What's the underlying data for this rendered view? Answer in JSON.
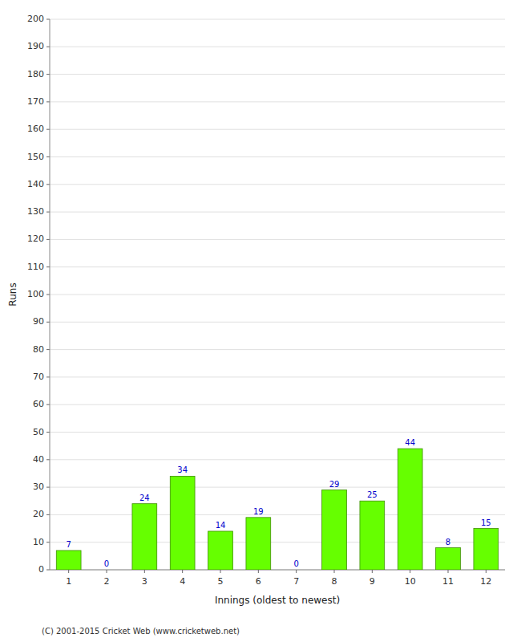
{
  "chart_data": {
    "type": "bar",
    "xlabel": "Innings (oldest to newest)",
    "ylabel": "Runs",
    "categories": [
      1,
      2,
      3,
      4,
      5,
      6,
      7,
      8,
      9,
      10,
      11,
      12
    ],
    "values": [
      7,
      0,
      24,
      34,
      14,
      19,
      0,
      29,
      25,
      44,
      8,
      15
    ],
    "color": "#66ff00",
    "ylim": [
      0,
      200
    ],
    "yticks": [
      0,
      10,
      20,
      30,
      40,
      50,
      60,
      70,
      80,
      90,
      100,
      110,
      120,
      130,
      140,
      150,
      160,
      170,
      180,
      190,
      200
    ],
    "grid": true,
    "data_labels": true,
    "footer": "(C) 2001-2015 Cricket Web (www.cricketweb.net)"
  }
}
